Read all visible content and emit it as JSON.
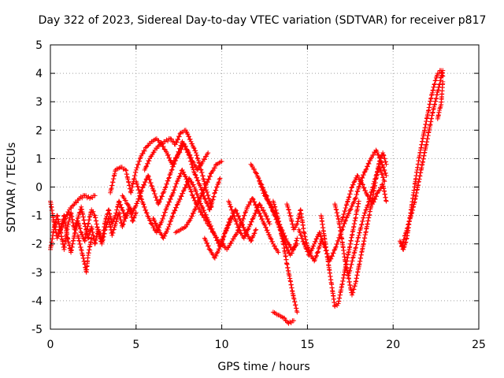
{
  "chart_data": {
    "type": "scatter",
    "title": "Day 322 of 2023, Sidereal Day-to-day VTEC variation (SDTVAR) for receiver p817",
    "xlabel": "GPS time / hours",
    "ylabel": "SDTVAR / TECUs",
    "xlim": [
      0,
      25
    ],
    "ylim": [
      -5,
      5
    ],
    "xticks": [
      "0",
      "5",
      "10",
      "15",
      "20",
      "25"
    ],
    "yticks": [
      "-5",
      "-4",
      "-3",
      "-2",
      "-1",
      "0",
      "1",
      "2",
      "3",
      "4",
      "5"
    ],
    "grid": true,
    "marker": "+",
    "series_color": "#ff0000",
    "series": [
      {
        "name": "SDTVAR",
        "segments": [
          {
            "x": [
              0.0,
              0.2,
              0.4,
              0.6,
              0.8,
              1.0,
              1.2,
              1.4,
              1.6,
              1.8,
              2.0,
              2.2,
              2.4,
              2.6,
              2.8,
              3.0,
              3.2,
              3.4,
              3.6,
              3.8,
              4.0,
              4.2,
              4.4,
              4.6,
              4.8,
              5.0
            ],
            "y": [
              -2.2,
              -1.5,
              -1.0,
              -1.6,
              -2.2,
              -1.4,
              -0.9,
              -1.5,
              -1.1,
              -0.7,
              -1.3,
              -1.8,
              -1.4,
              -2.0,
              -1.5,
              -1.9,
              -1.2,
              -0.8,
              -1.3,
              -1.0,
              -0.5,
              -0.8,
              -1.1,
              -0.7,
              -1.2,
              -0.9
            ]
          },
          {
            "x": [
              0.0,
              0.2,
              0.4,
              0.6,
              0.8,
              1.0,
              1.2,
              1.4,
              1.6,
              1.8,
              2.0,
              2.2,
              2.4,
              2.6,
              2.8,
              3.0,
              3.2,
              3.4,
              3.6,
              3.8,
              4.0,
              4.2,
              4.4
            ],
            "y": [
              -0.5,
              -1.2,
              -1.8,
              -1.5,
              -1.0,
              -1.8,
              -2.3,
              -1.7,
              -1.2,
              -1.6,
              -1.9,
              -1.3,
              -0.8,
              -1.0,
              -1.6,
              -2.0,
              -1.5,
              -1.1,
              -1.7,
              -1.3,
              -0.9,
              -1.4,
              -1.0
            ]
          },
          {
            "x": [
              1.6,
              1.8,
              2.0,
              2.1,
              2.2,
              2.4
            ],
            "y": [
              -1.7,
              -2.2,
              -2.7,
              -3.0,
              -2.4,
              -1.8
            ]
          },
          {
            "x": [
              0.5,
              0.8,
              1.1,
              1.4,
              1.7,
              2.0,
              2.3,
              2.6
            ],
            "y": [
              -1.6,
              -1.2,
              -0.8,
              -0.6,
              -0.4,
              -0.3,
              -0.4,
              -0.3
            ]
          },
          {
            "x": [
              3.5,
              3.8,
              4.1,
              4.4,
              4.7,
              5.0,
              5.3,
              5.6,
              5.9,
              6.2,
              6.5,
              6.8,
              7.1,
              7.4,
              7.7,
              8.0,
              8.3,
              8.6,
              8.9,
              9.2
            ],
            "y": [
              -0.2,
              0.6,
              0.7,
              0.6,
              -0.2,
              0.6,
              1.1,
              1.4,
              1.6,
              1.7,
              1.5,
              1.2,
              0.8,
              1.1,
              1.6,
              1.3,
              0.9,
              0.6,
              0.9,
              1.2
            ]
          },
          {
            "x": [
              4.2,
              4.5,
              4.8,
              5.1,
              5.4,
              5.7,
              6.0,
              6.3,
              6.6,
              6.9,
              7.2,
              7.5,
              7.8,
              8.1,
              8.4,
              8.7,
              9.0,
              9.3,
              9.6,
              9.9
            ],
            "y": [
              -0.3,
              -0.6,
              -0.9,
              -0.5,
              0.0,
              0.4,
              -0.1,
              -0.6,
              -0.2,
              0.3,
              0.8,
              1.2,
              1.5,
              1.1,
              0.5,
              0.1,
              -0.4,
              -0.8,
              -0.2,
              0.3
            ]
          },
          {
            "x": [
              5.0,
              5.3,
              5.6,
              5.9,
              6.2,
              6.5,
              6.8,
              7.1,
              7.4,
              7.7,
              8.0,
              8.3,
              8.6,
              8.9,
              9.2,
              9.5,
              9.8,
              10.1
            ],
            "y": [
              0.2,
              -0.4,
              -0.9,
              -1.3,
              -1.6,
              -1.2,
              -0.7,
              -0.3,
              0.2,
              0.6,
              0.2,
              -0.3,
              -0.7,
              -1.0,
              -1.3,
              -1.6,
              -1.9,
              -2.0
            ]
          },
          {
            "x": [
              5.5,
              5.8,
              6.1,
              6.4,
              6.7,
              7.0,
              7.3,
              7.6,
              7.9,
              8.2,
              8.5,
              8.8,
              9.1,
              9.4
            ],
            "y": [
              0.6,
              1.0,
              1.3,
              1.5,
              1.6,
              1.7,
              1.5,
              1.9,
              2.0,
              1.6,
              1.2,
              0.6,
              -0.1,
              -0.7
            ]
          },
          {
            "x": [
              6.0,
              6.3,
              6.6,
              6.9,
              7.2,
              7.5,
              7.8,
              8.1,
              8.4,
              8.7,
              9.0,
              9.3,
              9.6,
              9.9,
              10.2,
              10.5
            ],
            "y": [
              -1.1,
              -1.5,
              -1.8,
              -1.4,
              -0.9,
              -0.5,
              -0.1,
              0.3,
              0.0,
              -0.5,
              -0.9,
              -1.3,
              -1.7,
              -2.1,
              -1.6,
              -1.1
            ]
          },
          {
            "x": [
              7.3,
              7.6,
              7.9,
              8.2,
              8.5,
              8.8,
              9.1,
              9.4,
              9.7,
              10.0
            ],
            "y": [
              -1.6,
              -1.5,
              -1.4,
              -1.1,
              -0.7,
              -0.3,
              0.1,
              0.5,
              0.8,
              0.9
            ]
          },
          {
            "x": [
              9.0,
              9.3,
              9.6,
              9.9,
              10.2,
              10.5,
              10.8,
              11.1,
              11.4,
              11.7,
              12.0
            ],
            "y": [
              -1.8,
              -2.2,
              -2.5,
              -2.1,
              -1.6,
              -1.2,
              -0.8,
              -1.2,
              -1.6,
              -1.9,
              -1.5
            ]
          },
          {
            "x": [
              10.0,
              10.3,
              10.6,
              10.9,
              11.2,
              11.5,
              11.8,
              12.1,
              12.4,
              12.7,
              13.0,
              13.3
            ],
            "y": [
              -2.0,
              -2.2,
              -1.9,
              -1.6,
              -1.2,
              -0.7,
              -0.4,
              -0.8,
              -1.2,
              -1.6,
              -2.0,
              -2.3
            ]
          },
          {
            "x": [
              10.4,
              10.7,
              11.0,
              11.3,
              11.6,
              11.9,
              12.2,
              12.5,
              12.8
            ],
            "y": [
              -0.5,
              -1.0,
              -1.5,
              -1.8,
              -1.4,
              -1.0,
              -0.6,
              -0.9,
              -1.3
            ]
          },
          {
            "x": [
              11.7,
              12.0,
              12.3,
              12.6,
              12.9,
              13.2,
              13.5,
              13.8,
              14.1,
              14.4
            ],
            "y": [
              0.8,
              0.5,
              0.1,
              -0.3,
              -0.7,
              -1.1,
              -1.5,
              -1.9,
              -2.2,
              -2.0
            ]
          },
          {
            "x": [
              12.2,
              12.5,
              12.8,
              13.1,
              13.4,
              13.7,
              14.0,
              14.2,
              14.4
            ],
            "y": [
              0.2,
              -0.3,
              -0.6,
              -1.0,
              -1.5,
              -2.0,
              -2.4,
              -2.2,
              -1.8
            ]
          },
          {
            "x": [
              13.0,
              13.2,
              13.4,
              13.6,
              13.8,
              14.0,
              14.2,
              14.4
            ],
            "y": [
              -0.5,
              -0.9,
              -1.4,
              -2.0,
              -2.7,
              -3.3,
              -3.9,
              -4.4
            ]
          },
          {
            "x": [
              13.0,
              13.3,
              13.6,
              13.9,
              14.2
            ],
            "y": [
              -4.4,
              -4.5,
              -4.6,
              -4.8,
              -4.7
            ]
          },
          {
            "x": [
              13.8,
              14.0,
              14.2,
              14.4,
              14.6,
              14.8,
              15.0,
              15.2,
              15.4,
              15.6,
              15.8
            ],
            "y": [
              -0.6,
              -1.0,
              -1.5,
              -1.3,
              -0.8,
              -1.6,
              -2.1,
              -2.4,
              -2.6,
              -2.3,
              -1.9
            ]
          },
          {
            "x": [
              14.5,
              14.8,
              15.1,
              15.4,
              15.7,
              16.0,
              16.3,
              16.6,
              16.9,
              17.2,
              17.5,
              17.8,
              18.1,
              18.4,
              18.7,
              19.0,
              19.3,
              19.6
            ],
            "y": [
              -1.5,
              -2.0,
              -2.4,
              -2.0,
              -1.6,
              -2.1,
              -2.6,
              -2.2,
              -1.7,
              -1.2,
              -0.8,
              -0.4,
              0.2,
              0.6,
              1.0,
              1.3,
              0.9,
              0.4
            ]
          },
          {
            "x": [
              15.8,
              16.0,
              16.2,
              16.4,
              16.6,
              16.8,
              17.0,
              17.2,
              17.4,
              17.6,
              17.8,
              18.0
            ],
            "y": [
              -1.0,
              -1.8,
              -2.6,
              -3.4,
              -4.2,
              -4.1,
              -3.5,
              -2.9,
              -2.3,
              -1.7,
              -1.1,
              -0.5
            ]
          },
          {
            "x": [
              16.6,
              16.8,
              17.0,
              17.2,
              17.4,
              17.6,
              17.8,
              18.0,
              18.2,
              18.4,
              18.6,
              18.8,
              19.0,
              19.2,
              19.4,
              19.6
            ],
            "y": [
              -0.6,
              -1.1,
              -1.8,
              -2.6,
              -3.2,
              -3.8,
              -3.4,
              -2.8,
              -2.2,
              -1.6,
              -1.0,
              -0.4,
              0.3,
              0.9,
              1.2,
              0.8
            ]
          },
          {
            "x": [
              17.0,
              17.3,
              17.6,
              17.9,
              18.2,
              18.5,
              18.8,
              19.1,
              19.4,
              19.6
            ],
            "y": [
              -1.2,
              -0.6,
              0.0,
              0.4,
              0.1,
              -0.3,
              -0.6,
              -0.2,
              0.1,
              -0.5
            ]
          },
          {
            "x": [
              17.4,
              17.7,
              18.0,
              18.3,
              18.6,
              18.9,
              19.2,
              19.5
            ],
            "y": [
              -3.1,
              -2.4,
              -1.7,
              -1.0,
              -0.5,
              0.2,
              0.7,
              0.2
            ]
          },
          {
            "x": [
              20.4,
              20.6,
              20.8,
              21.0,
              21.2,
              21.4,
              21.6,
              21.8,
              22.0,
              22.2,
              22.4,
              22.6,
              22.8,
              22.9
            ],
            "y": [
              -1.9,
              -2.2,
              -1.8,
              -1.0,
              -0.2,
              0.6,
              1.3,
              1.9,
              2.5,
              3.1,
              3.6,
              4.0,
              4.1,
              3.9
            ]
          },
          {
            "x": [
              20.5,
              20.7,
              20.9,
              21.1,
              21.3,
              21.5,
              21.7,
              21.9,
              22.1,
              22.3,
              22.5,
              22.7,
              22.9
            ],
            "y": [
              -2.1,
              -1.7,
              -1.3,
              -0.9,
              -0.4,
              0.2,
              0.8,
              1.4,
              2.0,
              2.6,
              3.1,
              3.6,
              4.1
            ]
          },
          {
            "x": [
              22.6,
              22.7,
              22.8,
              22.9
            ],
            "y": [
              2.4,
              2.7,
              2.9,
              3.7
            ]
          }
        ]
      }
    ]
  }
}
